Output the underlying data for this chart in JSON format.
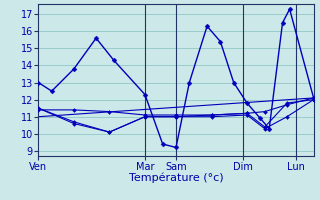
{
  "background_color": "#cce8e8",
  "grid_color": "#99cccc",
  "line_color": "#0000bb",
  "marker_color": "#0000bb",
  "xlabel": "Température (°c)",
  "xlabel_color": "#0000aa",
  "tick_label_color": "#0000aa",
  "ylim": [
    8.7,
    17.6
  ],
  "yticks": [
    9,
    10,
    11,
    12,
    13,
    14,
    15,
    16,
    17
  ],
  "day_labels": [
    "Ven",
    "Mar",
    "Sam",
    "Dim",
    "Lun"
  ],
  "day_x": [
    0,
    120,
    155,
    230,
    290
  ],
  "xlim": [
    0,
    310
  ],
  "series": [
    {
      "x": [
        0,
        15,
        40,
        65,
        85,
        120,
        140,
        155,
        170,
        190,
        205,
        220,
        235,
        250,
        260,
        275,
        283,
        310
      ],
      "y": [
        13.0,
        12.5,
        13.8,
        15.6,
        14.3,
        12.3,
        9.4,
        9.2,
        13.0,
        16.3,
        15.4,
        13.0,
        11.8,
        10.9,
        10.3,
        16.5,
        17.3,
        12.1
      ]
    },
    {
      "x": [
        0,
        40,
        80,
        120,
        155,
        195,
        235,
        255,
        280,
        310
      ],
      "y": [
        11.4,
        11.4,
        11.3,
        11.1,
        11.1,
        11.1,
        11.2,
        11.3,
        11.7,
        12.1
      ]
    },
    {
      "x": [
        0,
        40,
        80,
        120,
        155,
        195,
        235,
        255,
        280,
        310
      ],
      "y": [
        11.5,
        10.6,
        10.1,
        11.0,
        11.0,
        11.0,
        11.1,
        10.3,
        11.0,
        12.0
      ]
    },
    {
      "x": [
        0,
        40,
        80,
        120,
        155,
        195,
        235,
        255,
        280,
        310
      ],
      "y": [
        11.5,
        10.7,
        10.1,
        11.0,
        11.0,
        11.1,
        11.2,
        10.4,
        11.8,
        12.0
      ]
    },
    {
      "x": [
        0,
        310
      ],
      "y": [
        11.0,
        12.1
      ]
    }
  ],
  "vlines": [
    120,
    155,
    230,
    290
  ],
  "figsize": [
    3.2,
    2.0
  ],
  "dpi": 100
}
